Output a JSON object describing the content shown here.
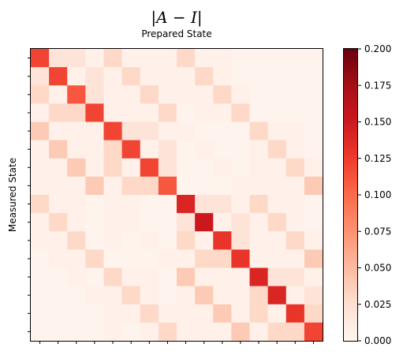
{
  "chart_data": {
    "type": "heatmap",
    "title": "|A − I|",
    "xlabel": "Prepared State",
    "ylabel": "Measured State",
    "x_tick_count": 16,
    "y_tick_count": 16,
    "colormap": "Reds",
    "colorbar": {
      "min": 0.0,
      "max": 0.2,
      "tick_labels": [
        "0.000",
        "0.025",
        "0.050",
        "0.075",
        "0.100",
        "0.125",
        "0.150",
        "0.175",
        "0.200"
      ]
    },
    "values": [
      [
        0.12,
        0.02,
        0.02,
        0.005,
        0.03,
        0.005,
        0.005,
        0.005,
        0.03,
        0.005,
        0.005,
        0.002,
        0.002,
        0.002,
        0.002,
        0.002
      ],
      [
        0.02,
        0.12,
        0.005,
        0.02,
        0.005,
        0.03,
        0.005,
        0.005,
        0.005,
        0.03,
        0.005,
        0.002,
        0.002,
        0.002,
        0.002,
        0.002
      ],
      [
        0.03,
        0.005,
        0.11,
        0.02,
        0.005,
        0.005,
        0.03,
        0.005,
        0.005,
        0.005,
        0.03,
        0.005,
        0.002,
        0.002,
        0.002,
        0.002
      ],
      [
        0.005,
        0.03,
        0.03,
        0.12,
        0.005,
        0.005,
        0.005,
        0.03,
        0.002,
        0.005,
        0.005,
        0.03,
        0.002,
        0.002,
        0.002,
        0.002
      ],
      [
        0.04,
        0.005,
        0.005,
        0.005,
        0.12,
        0.02,
        0.02,
        0.005,
        0.005,
        0.002,
        0.002,
        0.002,
        0.03,
        0.005,
        0.005,
        0.002
      ],
      [
        0.005,
        0.04,
        0.005,
        0.005,
        0.03,
        0.12,
        0.005,
        0.02,
        0.002,
        0.005,
        0.002,
        0.002,
        0.005,
        0.03,
        0.005,
        0.002
      ],
      [
        0.005,
        0.005,
        0.04,
        0.005,
        0.03,
        0.005,
        0.12,
        0.02,
        0.002,
        0.002,
        0.005,
        0.002,
        0.005,
        0.005,
        0.03,
        0.005
      ],
      [
        0.005,
        0.005,
        0.005,
        0.04,
        0.005,
        0.03,
        0.03,
        0.11,
        0.002,
        0.002,
        0.002,
        0.005,
        0.005,
        0.005,
        0.005,
        0.04
      ],
      [
        0.03,
        0.005,
        0.005,
        0.002,
        0.005,
        0.005,
        0.002,
        0.002,
        0.14,
        0.02,
        0.02,
        0.005,
        0.03,
        0.005,
        0.005,
        0.002
      ],
      [
        0.005,
        0.03,
        0.005,
        0.002,
        0.005,
        0.005,
        0.002,
        0.002,
        0.02,
        0.15,
        0.005,
        0.02,
        0.005,
        0.03,
        0.005,
        0.002
      ],
      [
        0.005,
        0.005,
        0.03,
        0.002,
        0.005,
        0.002,
        0.005,
        0.002,
        0.03,
        0.005,
        0.13,
        0.02,
        0.005,
        0.005,
        0.03,
        0.005
      ],
      [
        0.002,
        0.005,
        0.005,
        0.03,
        0.002,
        0.002,
        0.002,
        0.005,
        0.005,
        0.03,
        0.03,
        0.13,
        0.005,
        0.005,
        0.005,
        0.04
      ],
      [
        0.002,
        0.002,
        0.005,
        0.002,
        0.03,
        0.005,
        0.005,
        0.002,
        0.04,
        0.005,
        0.005,
        0.005,
        0.14,
        0.02,
        0.02,
        0.005
      ],
      [
        0.002,
        0.002,
        0.002,
        0.005,
        0.005,
        0.03,
        0.005,
        0.002,
        0.005,
        0.04,
        0.005,
        0.005,
        0.03,
        0.14,
        0.005,
        0.02
      ],
      [
        0.002,
        0.002,
        0.002,
        0.002,
        0.005,
        0.005,
        0.03,
        0.005,
        0.005,
        0.005,
        0.04,
        0.005,
        0.03,
        0.005,
        0.13,
        0.03
      ],
      [
        0.002,
        0.002,
        0.002,
        0.002,
        0.005,
        0.002,
        0.005,
        0.03,
        0.005,
        0.005,
        0.005,
        0.04,
        0.005,
        0.03,
        0.03,
        0.12
      ]
    ]
  }
}
